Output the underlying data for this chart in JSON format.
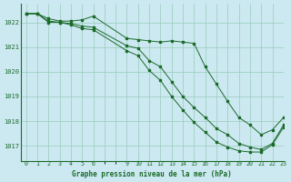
{
  "bg_color": "#cce8f0",
  "grid_color": "#99ccbb",
  "line_color": "#1a6b2a",
  "title": "Graphe pression niveau de la mer (hPa)",
  "xlim": [
    -0.5,
    23
  ],
  "ylim": [
    1016.4,
    1022.75
  ],
  "yticks": [
    1017,
    1018,
    1019,
    1020,
    1021,
    1022
  ],
  "xtick_positions": [
    0,
    1,
    2,
    3,
    4,
    5,
    6,
    9,
    10,
    11,
    12,
    13,
    14,
    15,
    16,
    17,
    18,
    19,
    20,
    21,
    22,
    23
  ],
  "xtick_labels": [
    "0",
    "1",
    "2",
    "3",
    "4",
    "5",
    "6",
    "9",
    "10",
    "11",
    "12",
    "13",
    "14",
    "15",
    "16",
    "17",
    "18",
    "19",
    "20",
    "21",
    "22",
    "23"
  ],
  "series1_x": [
    0,
    1,
    2,
    3,
    4,
    5,
    6,
    9,
    10,
    11,
    12,
    13,
    14,
    15,
    16,
    17,
    18,
    19,
    20,
    21,
    22,
    23
  ],
  "series1_y": [
    1022.35,
    1022.35,
    1022.15,
    1022.05,
    1022.05,
    1022.1,
    1022.25,
    1021.35,
    1021.3,
    1021.25,
    1021.2,
    1021.25,
    1021.2,
    1021.15,
    1020.2,
    1019.5,
    1018.8,
    1018.15,
    1017.85,
    1017.45,
    1017.65,
    1018.15
  ],
  "series2_x": [
    0,
    1,
    2,
    3,
    4,
    5,
    6,
    9,
    10,
    11,
    12,
    13,
    14,
    15,
    16,
    17,
    18,
    19,
    20,
    21,
    22,
    23
  ],
  "series2_y": [
    1022.35,
    1022.35,
    1022.05,
    1022.0,
    1021.95,
    1021.85,
    1021.8,
    1021.05,
    1020.95,
    1020.45,
    1020.2,
    1019.6,
    1019.0,
    1018.55,
    1018.15,
    1017.7,
    1017.45,
    1017.1,
    1016.95,
    1016.85,
    1017.1,
    1017.85
  ],
  "series3_x": [
    0,
    1,
    2,
    3,
    4,
    5,
    6,
    9,
    10,
    11,
    12,
    13,
    14,
    15,
    16,
    17,
    18,
    19,
    20,
    21,
    22,
    23
  ],
  "series3_y": [
    1022.35,
    1022.35,
    1022.0,
    1022.0,
    1021.9,
    1021.75,
    1021.7,
    1020.85,
    1020.65,
    1020.05,
    1019.65,
    1019.0,
    1018.45,
    1017.95,
    1017.55,
    1017.15,
    1016.95,
    1016.8,
    1016.75,
    1016.75,
    1017.05,
    1017.75
  ]
}
